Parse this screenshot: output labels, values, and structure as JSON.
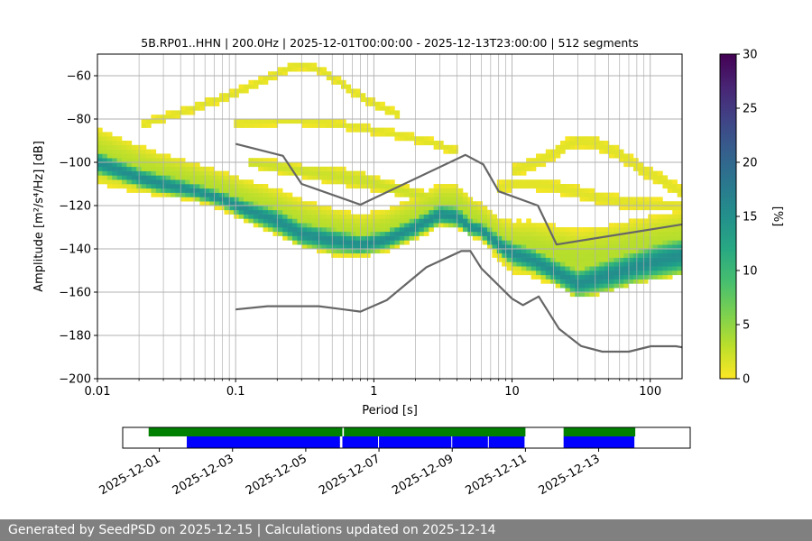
{
  "chart_data": [
    {
      "type": "heatmap",
      "title": "5B.RP01..HHN | 200.0Hz | 2025-12-01T00:00:00 - 2025-12-13T23:00:00 | 512 segments",
      "xlabel": "Period [s]",
      "ylabel": "Amplitude [m²/s⁴/Hz] [dB]",
      "x_scale": "log",
      "xlim": [
        0.01,
        170
      ],
      "ylim": [
        -200,
        -50
      ],
      "x_ticks": [
        0.01,
        0.1,
        1,
        10,
        100
      ],
      "x_tick_labels": [
        "0.01",
        "0.1",
        "1",
        "10",
        "100"
      ],
      "y_ticks": [
        -200,
        -180,
        -160,
        -140,
        -120,
        -100,
        -80,
        -60
      ],
      "y_tick_labels": [
        "−200",
        "−180",
        "−160",
        "−140",
        "−120",
        "−100",
        "−80",
        "−60"
      ],
      "grid": true,
      "colorbar": {
        "label": "[%]",
        "range": [
          0,
          30
        ],
        "ticks": [
          0,
          5,
          10,
          15,
          20,
          25,
          30
        ],
        "tick_labels": [
          "0",
          "5",
          "10",
          "15",
          "20",
          "25",
          "30"
        ],
        "colormap": "viridis_r"
      },
      "density_bands": [
        {
          "x": [
            0.01,
            0.02,
            0.03,
            0.05,
            0.08,
            0.12,
            0.2,
            0.3,
            0.5,
            0.8,
            1.2,
            2,
            3,
            4,
            5,
            6,
            8,
            10,
            14,
            20,
            30,
            50,
            80,
            120,
            170
          ],
          "center": [
            -100,
            -107,
            -110,
            -113,
            -117,
            -122,
            -127,
            -133,
            -136,
            -138,
            -136,
            -130,
            -124,
            -125,
            -130,
            -131,
            -138,
            -142,
            -145,
            -150,
            -156,
            -152,
            -148,
            -145,
            -143
          ],
          "halfwidth": [
            6,
            5,
            5,
            4,
            4,
            5,
            6,
            6,
            6,
            5,
            5,
            5,
            5,
            5,
            4,
            4,
            5,
            6,
            6,
            6,
            7,
            8,
            8,
            9,
            9
          ],
          "peak": 15
        },
        {
          "x": [
            0.01,
            0.02,
            0.03,
            0.05,
            0.08,
            0.12,
            0.2,
            0.3,
            0.5,
            0.8,
            1.2,
            2,
            3,
            4,
            5,
            6,
            8,
            10,
            14,
            20,
            30,
            50,
            80,
            120,
            170
          ],
          "center": [
            -97,
            -103,
            -106,
            -109,
            -113,
            -118,
            -123,
            -128,
            -132,
            -134,
            -132,
            -126,
            -120,
            -120,
            -125,
            -128,
            -135,
            -139,
            -140,
            -143,
            -145,
            -143,
            -140,
            -138,
            -136
          ],
          "halfwidth": [
            13,
            11,
            10,
            9,
            9,
            10,
            11,
            11,
            11,
            10,
            10,
            10,
            10,
            10,
            9,
            9,
            10,
            12,
            13,
            14,
            14,
            14,
            14,
            14,
            14
          ],
          "peak": 3
        },
        {
          "x": [
            0.12,
            0.2,
            0.3,
            0.5,
            0.8,
            1.2,
            2,
            3,
            5
          ],
          "center": [
            -100,
            -102,
            -104,
            -106,
            -108,
            -111,
            -115,
            -118,
            -121
          ],
          "halfwidth": [
            2,
            3,
            3,
            4,
            4,
            3,
            3,
            3,
            2
          ],
          "peak": 2
        },
        {
          "x": [
            0.02,
            0.04,
            0.06,
            0.1,
            0.15,
            0.2,
            0.25,
            0.3,
            0.4,
            0.5,
            0.7,
            1.0,
            1.5
          ],
          "center": [
            -83,
            -77,
            -73,
            -68,
            -63,
            -59,
            -56,
            -55,
            -57,
            -61,
            -67,
            -73,
            -78
          ],
          "halfwidth": [
            2,
            2,
            2,
            2,
            2,
            2,
            2,
            2,
            2,
            2,
            2,
            2,
            2
          ],
          "peak": 1
        },
        {
          "x": [
            0.1,
            0.2,
            0.3,
            0.5,
            0.8,
            1.2,
            2,
            3,
            4
          ],
          "center": [
            -82,
            -81,
            -81,
            -82,
            -84,
            -86,
            -89,
            -92,
            -95
          ],
          "halfwidth": [
            2,
            2,
            2,
            2,
            2,
            2,
            2,
            2,
            2
          ],
          "peak": 1
        },
        {
          "x": [
            10,
            15,
            20,
            25,
            30,
            40,
            60,
            80,
            120,
            170
          ],
          "center": [
            -104,
            -100,
            -96,
            -92,
            -90,
            -91,
            -96,
            -102,
            -108,
            -114
          ],
          "halfwidth": [
            3,
            3,
            3,
            3,
            3,
            3,
            3,
            3,
            3,
            3
          ],
          "peak": 1
        },
        {
          "x": [
            8,
            10,
            15,
            20,
            30,
            40,
            60,
            80,
            120,
            170
          ],
          "center": [
            -112,
            -110,
            -110,
            -111,
            -114,
            -116,
            -118,
            -119,
            -120,
            -120
          ],
          "halfwidth": [
            3,
            3,
            3,
            3,
            3,
            3,
            3,
            3,
            3,
            3
          ],
          "peak": 1
        }
      ],
      "series": [
        {
          "x": [
            0.1,
            0.22,
            0.3,
            0.8,
            4.6,
            6.2,
            8.0,
            15.4,
            21.0,
            170
          ],
          "y": [
            -91.5,
            -97.0,
            -110.0,
            -119.6,
            -96.6,
            -101.0,
            -113.4,
            -120.0,
            -138.0,
            -128.7
          ]
        },
        {
          "x": [
            0.1,
            0.17,
            0.4,
            0.8,
            1.24,
            2.4,
            4.3,
            5.0,
            6.0,
            10.0,
            12.0,
            15.6,
            21.9,
            31.6,
            45.0,
            70.0,
            101.0,
            154.0,
            170
          ],
          "y": [
            -168.0,
            -166.5,
            -166.5,
            -169.0,
            -163.7,
            -148.5,
            -141.0,
            -141.0,
            -149.0,
            -163.0,
            -166.0,
            -162.0,
            -177.0,
            -184.9,
            -187.5,
            -187.5,
            -185.0,
            -185.0,
            -185.5
          ]
        }
      ]
    },
    {
      "type": "timeline",
      "x_range": [
        "2025-11-30T00:00",
        "2025-12-15T12:00"
      ],
      "x_tick_labels": [
        "2025-12-01",
        "2025-12-03",
        "2025-12-05",
        "2025-12-07",
        "2025-12-09",
        "2025-12-11",
        "2025-12-13"
      ],
      "x_ticks": [
        "2025-12-01",
        "2025-12-03",
        "2025-12-05",
        "2025-12-07",
        "2025-12-09",
        "2025-12-11",
        "2025-12-13"
      ],
      "green_spans": [
        [
          "2025-12-00T17:00",
          "2025-12-06T00:00"
        ],
        [
          "2025-12-06T01:00",
          "2025-12-11T00:00"
        ],
        [
          "2025-12-12T01:00",
          "2025-12-14T00:00"
        ]
      ],
      "blue_spans": [
        [
          "2025-12-01T18:00",
          "2025-12-05T23:00"
        ],
        [
          "2025-12-06T00:00",
          "2025-12-06T23:59"
        ],
        [
          "2025-12-07T00:00",
          "2025-12-09T00:00"
        ],
        [
          "2025-12-09T00:00",
          "2025-12-10T00:00"
        ],
        [
          "2025-12-10T00:00",
          "2025-12-11T00:00"
        ],
        [
          "2025-12-12T01:00",
          "2025-12-14T00:00"
        ]
      ],
      "colors": {
        "green": "#008000",
        "blue": "#0000ff"
      }
    }
  ],
  "footer": {
    "text": "Generated by SeedPSD on 2025-12-15 | Calculations updated on 2025-12-14"
  }
}
